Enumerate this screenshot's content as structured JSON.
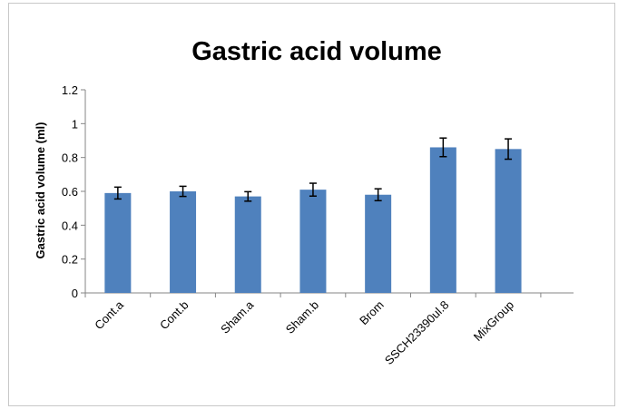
{
  "chart_data": {
    "type": "bar",
    "title": "Gastric acid volume",
    "xlabel": "",
    "ylabel": "Gastric acid volume (ml)",
    "categories": [
      "Cont.a",
      "Cont.b",
      "Sham.a",
      "Sham.b",
      "Brom",
      "SSCH23390ul.8",
      "MixGroup"
    ],
    "values": [
      0.59,
      0.6,
      0.57,
      0.61,
      0.58,
      0.86,
      0.85
    ],
    "errors": [
      0.035,
      0.03,
      0.028,
      0.038,
      0.035,
      0.055,
      0.06
    ],
    "ylim": [
      0,
      1.2
    ],
    "yticks": [
      "0",
      "0.2",
      "0.4",
      "0.6",
      "0.8",
      "1",
      "1.2"
    ],
    "grid": false,
    "legend": "none",
    "bar_color": "#4f81bd",
    "error_color": "#000000"
  }
}
